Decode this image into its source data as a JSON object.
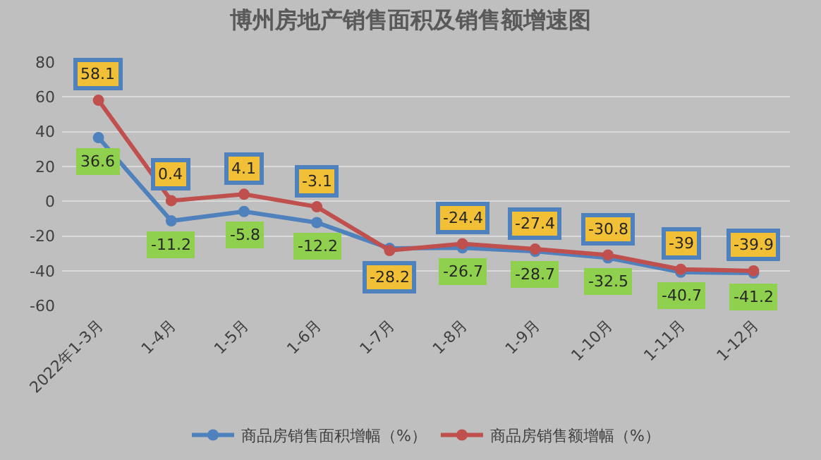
{
  "chart_data": {
    "type": "line",
    "title": "博州房地产销售面积及销售额增速图",
    "categories": [
      "2022年1-3月",
      "1-4月",
      "1-5月",
      "1-6月",
      "1-7月",
      "1-8月",
      "1-9月",
      "1-10月",
      "1-11月",
      "1-12月"
    ],
    "series": [
      {
        "name": "商品房销售面积增幅（%）",
        "color": "#4f81bd",
        "values": [
          36.6,
          -11.2,
          -5.8,
          -12.2,
          -27,
          -26.7,
          -28.7,
          -32.5,
          -40.7,
          -41.2
        ],
        "value_labels": [
          "36.6",
          "-11.2",
          "-5.8",
          "-12.2",
          null,
          "-26.7",
          "-28.7",
          "-32.5",
          "-40.7",
          "-41.2"
        ]
      },
      {
        "name": "商品房销售额增幅（%）",
        "color": "#c0504d",
        "values": [
          58.1,
          0.4,
          4.1,
          -3.1,
          -28.2,
          -24.4,
          -27.4,
          -30.8,
          -39,
          -39.9
        ],
        "value_labels": [
          "58.1",
          "0.4",
          "4.1",
          "-3.1",
          "-28.2",
          "-24.4",
          "-27.4",
          "-30.8",
          "-39",
          "-39.9"
        ]
      }
    ],
    "ylim": [
      -60,
      80
    ],
    "yticks": [
      -60,
      -40,
      -20,
      0,
      20,
      40,
      60,
      80
    ],
    "grid": "y",
    "legend": "bottom",
    "marker": "circle",
    "line_style": "solid"
  }
}
